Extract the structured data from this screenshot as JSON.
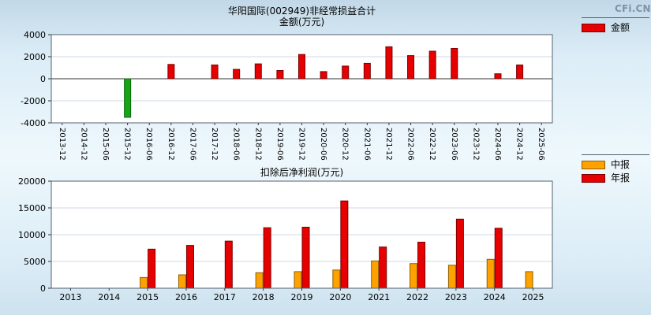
{
  "logo": "CFi.CN",
  "chart_data": [
    {
      "type": "bar",
      "title": "华阳国际(002949)非经常损益合计",
      "ylabel": "金额(万元)",
      "categories": [
        "2013-12",
        "2014-12",
        "2015-06",
        "2015-12",
        "2016-06",
        "2016-12",
        "2017-06",
        "2017-12",
        "2018-06",
        "2018-12",
        "2019-06",
        "2019-12",
        "2020-06",
        "2020-12",
        "2021-06",
        "2021-12",
        "2022-06",
        "2022-12",
        "2023-06",
        "2023-12",
        "2024-06",
        "2024-12",
        "2025-06"
      ],
      "series": [
        {
          "name": "金额",
          "color": "#e60000",
          "border": "#7d0000",
          "values": [
            null,
            null,
            null,
            -3500,
            null,
            1300,
            null,
            1250,
            850,
            1350,
            750,
            2200,
            650,
            1150,
            1400,
            2900,
            2100,
            2500,
            2750,
            null,
            450,
            1250,
            null
          ]
        }
      ],
      "negative_color": "#18a418",
      "negative_border": "#0b6b0b",
      "ylim": [
        -4000,
        4000
      ],
      "yticks": [
        4000,
        2000,
        0,
        -2000,
        -4000
      ],
      "grid": true,
      "legend_position": "right-top"
    },
    {
      "type": "bar",
      "title": "扣除后净利润(万元)",
      "categories": [
        "2013",
        "2014",
        "2015",
        "2016",
        "2017",
        "2018",
        "2019",
        "2020",
        "2021",
        "2022",
        "2023",
        "2024",
        "2025"
      ],
      "series": [
        {
          "name": "中报",
          "color": "#ffa200",
          "border": "#8f5f00",
          "values": [
            null,
            null,
            2000,
            2500,
            null,
            2900,
            3100,
            3400,
            5100,
            4600,
            4300,
            5400,
            3100
          ]
        },
        {
          "name": "年报",
          "color": "#e60000",
          "border": "#7d0000",
          "values": [
            null,
            null,
            7300,
            8000,
            8800,
            11300,
            11400,
            16300,
            7700,
            8600,
            12900,
            11200,
            null
          ]
        }
      ],
      "ylim": [
        0,
        20000
      ],
      "yticks": [
        0,
        5000,
        10000,
        15000,
        20000
      ],
      "grid": true,
      "legend_position": "right-top"
    }
  ]
}
